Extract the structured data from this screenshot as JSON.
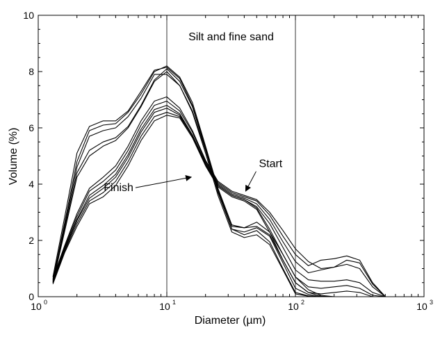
{
  "chart_data": {
    "type": "line",
    "xlabel": "Diameter (µm)",
    "ylabel": "Volume (%)",
    "x_scale": "log",
    "xlim": [
      1,
      1000
    ],
    "ylim": [
      0,
      10
    ],
    "x_ticks": [
      {
        "value": 1,
        "base": "10",
        "exp": "0"
      },
      {
        "value": 10,
        "base": "10",
        "exp": "1"
      },
      {
        "value": 100,
        "base": "10",
        "exp": "2"
      },
      {
        "value": 1000,
        "base": "10",
        "exp": "3"
      }
    ],
    "y_ticks": [
      {
        "value": 0,
        "label": "0"
      },
      {
        "value": 2,
        "label": "2"
      },
      {
        "value": 4,
        "label": "4"
      },
      {
        "value": 6,
        "label": "6"
      },
      {
        "value": 8,
        "label": "8"
      },
      {
        "value": 10,
        "label": "10"
      }
    ],
    "grid": false,
    "legend": "none",
    "region": {
      "x_start": 10,
      "x_end": 100,
      "label": "Silt and fine sand"
    },
    "annotations": [
      {
        "text": "Start",
        "text_x": 52,
        "text_y": 4.6,
        "arrow_to_x": 41,
        "arrow_to_y": 3.75
      },
      {
        "text": "Finish",
        "text_x": 5.5,
        "text_y": 3.75,
        "arrow_to_x": 15.5,
        "arrow_to_y": 4.25
      }
    ],
    "x": [
      1.3,
      1.6,
      2,
      2.5,
      3.2,
      4,
      5,
      6.3,
      8,
      10,
      12.6,
      15.8,
      20,
      25,
      32,
      40,
      50,
      63,
      80,
      100,
      126,
      158,
      200,
      251,
      316,
      398,
      501
    ],
    "series": [
      {
        "values": [
          0.7,
          2.8,
          5.1,
          6.05,
          6.25,
          6.25,
          6.6,
          7.3,
          8.05,
          8.15,
          7.75,
          6.8,
          5.3,
          3.8,
          2.5,
          2.45,
          2.65,
          2.3,
          1.5,
          0.7,
          0.25,
          0.05,
          0,
          0,
          0,
          0,
          0
        ]
      },
      {
        "values": [
          0.6,
          2.6,
          4.8,
          5.9,
          6.1,
          6.15,
          6.55,
          7.2,
          8.0,
          8.2,
          7.8,
          6.9,
          5.35,
          3.85,
          2.55,
          2.45,
          2.5,
          2.2,
          1.3,
          0.5,
          0.15,
          0.02,
          0,
          0,
          0,
          0,
          0
        ]
      },
      {
        "values": [
          0.55,
          2.5,
          4.6,
          5.7,
          5.9,
          6.0,
          6.4,
          7.05,
          7.9,
          7.9,
          7.5,
          6.6,
          5.2,
          3.7,
          2.4,
          2.3,
          2.45,
          2.15,
          1.2,
          0.3,
          0.08,
          0,
          0,
          0,
          0,
          0,
          0
        ]
      },
      {
        "values": [
          0.5,
          2.4,
          4.4,
          5.2,
          5.5,
          5.65,
          6.05,
          6.8,
          7.7,
          8.1,
          7.65,
          6.75,
          5.25,
          3.75,
          2.4,
          2.2,
          2.35,
          1.95,
          1.0,
          0.15,
          0.03,
          0,
          0,
          0,
          0,
          0,
          0
        ]
      },
      {
        "values": [
          0.5,
          2.3,
          4.25,
          5.0,
          5.35,
          5.55,
          6.0,
          6.75,
          7.65,
          8.0,
          7.5,
          6.55,
          5.1,
          3.6,
          2.3,
          2.1,
          2.2,
          1.85,
          0.95,
          0.1,
          0.02,
          0,
          0,
          0,
          0,
          0,
          0
        ]
      },
      {
        "values": [
          0.65,
          1.8,
          2.95,
          3.85,
          4.25,
          4.65,
          5.35,
          6.25,
          6.95,
          7.1,
          6.7,
          5.9,
          4.85,
          4.1,
          3.75,
          3.6,
          3.45,
          3.0,
          2.35,
          1.7,
          1.25,
          1.0,
          1.05,
          1.3,
          1.2,
          0.45,
          0
        ]
      },
      {
        "values": [
          0.6,
          1.75,
          2.85,
          3.75,
          4.1,
          4.5,
          5.2,
          6.1,
          6.8,
          6.95,
          6.6,
          5.85,
          4.8,
          4.05,
          3.7,
          3.55,
          3.4,
          2.9,
          2.15,
          1.5,
          1.1,
          1.3,
          1.35,
          1.45,
          1.3,
          0.5,
          0
        ]
      },
      {
        "values": [
          0.55,
          1.7,
          2.75,
          3.6,
          3.95,
          4.35,
          5.05,
          5.95,
          6.65,
          6.8,
          6.5,
          5.75,
          4.75,
          4.0,
          3.65,
          3.5,
          3.3,
          2.75,
          1.95,
          1.25,
          0.85,
          0.95,
          1.05,
          1.15,
          1.0,
          0.35,
          0
        ]
      },
      {
        "values": [
          0.55,
          1.65,
          2.7,
          3.5,
          3.85,
          4.25,
          4.95,
          5.85,
          6.55,
          6.7,
          6.45,
          5.7,
          4.7,
          3.95,
          3.6,
          3.45,
          3.2,
          2.6,
          1.75,
          0.95,
          0.6,
          0.55,
          0.55,
          0.6,
          0.5,
          0.15,
          0
        ]
      },
      {
        "values": [
          0.5,
          1.6,
          2.6,
          3.4,
          3.7,
          4.1,
          4.8,
          5.7,
          6.4,
          6.55,
          6.4,
          5.7,
          4.7,
          3.95,
          3.6,
          3.45,
          3.15,
          2.4,
          1.5,
          0.7,
          0.35,
          0.3,
          0.35,
          0.4,
          0.3,
          0.05,
          0
        ]
      },
      {
        "values": [
          0.45,
          1.55,
          2.5,
          3.3,
          3.55,
          3.95,
          4.65,
          5.55,
          6.25,
          6.45,
          6.35,
          5.65,
          4.65,
          3.9,
          3.55,
          3.4,
          3.1,
          2.3,
          1.3,
          0.5,
          0.15,
          0.1,
          0.15,
          0.2,
          0.15,
          0,
          0
        ]
      }
    ]
  }
}
